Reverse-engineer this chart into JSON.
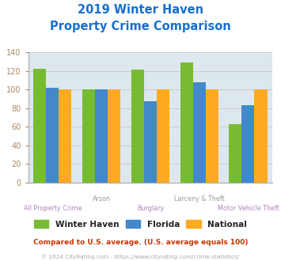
{
  "title_line1": "2019 Winter Haven",
  "title_line2": "Property Crime Comparison",
  "title_color": "#1a6fcc",
  "categories": [
    "All Property Crime",
    "Arson",
    "Burglary",
    "Larceny & Theft",
    "Motor Vehicle Theft"
  ],
  "winter_haven": [
    122,
    100,
    121,
    129,
    63
  ],
  "florida": [
    102,
    100,
    87,
    108,
    83
  ],
  "national": [
    100,
    100,
    100,
    100,
    100
  ],
  "wh_color": "#77bb33",
  "fl_color": "#4488cc",
  "nat_color": "#ffaa22",
  "ylim": [
    0,
    140
  ],
  "yticks": [
    0,
    20,
    40,
    60,
    80,
    100,
    120,
    140
  ],
  "grid_color": "#cccccc",
  "bg_color": "#dde8ee",
  "legend_labels": [
    "Winter Haven",
    "Florida",
    "National"
  ],
  "footnote1": "Compared to U.S. average. (U.S. average equals 100)",
  "footnote2": "© 2024 CityRating.com - https://www.cityrating.com/crime-statistics/",
  "footnote1_color": "#cc3300",
  "footnote2_color": "#aaaaaa",
  "xlabel_color": "#aa88bb",
  "xlabel_upper_color": "#999999",
  "ytick_color": "#aa8866"
}
